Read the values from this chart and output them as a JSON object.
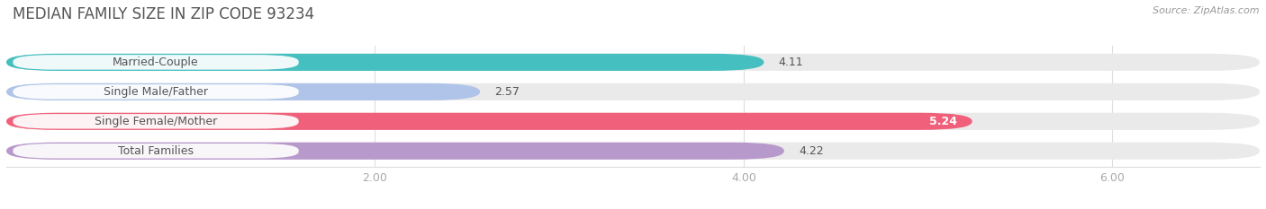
{
  "title": "MEDIAN FAMILY SIZE IN ZIP CODE 93234",
  "source": "Source: ZipAtlas.com",
  "categories": [
    "Married-Couple",
    "Single Male/Father",
    "Single Female/Mother",
    "Total Families"
  ],
  "values": [
    4.11,
    2.57,
    5.24,
    4.22
  ],
  "bar_colors": [
    "#45bfc0",
    "#afc4e8",
    "#f0607a",
    "#b899cc"
  ],
  "bar_bg_color": "#eaeaea",
  "value_inside": [
    false,
    false,
    true,
    false
  ],
  "xlim_max": 6.8,
  "xticks": [
    2.0,
    4.0,
    6.0
  ],
  "xticklabels": [
    "2.00",
    "4.00",
    "6.00"
  ],
  "figsize": [
    14.06,
    2.33
  ],
  "dpi": 100,
  "title_fontsize": 12,
  "bar_height": 0.58,
  "bar_gap": 0.35,
  "value_fontsize": 9,
  "category_fontsize": 9,
  "source_fontsize": 8,
  "bg_color": "#ffffff",
  "title_color": "#555555",
  "source_color": "#999999",
  "tick_color": "#aaaaaa",
  "grid_color": "#dddddd",
  "label_box_color": "#ffffff",
  "label_text_color": "#555555",
  "value_label_color_outside": "#555555",
  "value_label_color_inside": "#ffffff"
}
